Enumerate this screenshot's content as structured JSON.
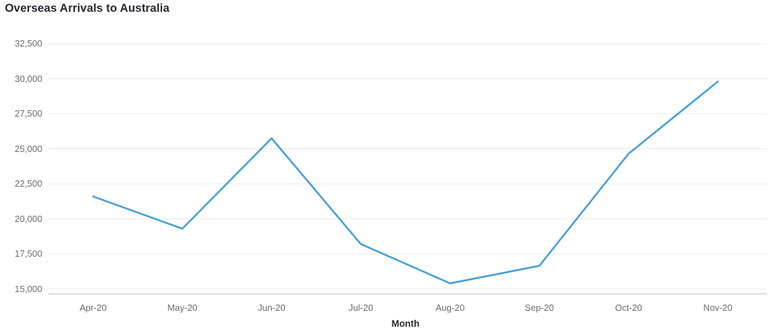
{
  "page": {
    "title": "Overseas Arrivals to Australia"
  },
  "chart_data": {
    "type": "line",
    "title": "Overseas Arrivals to Australia",
    "categories": [
      "Apr-20",
      "May-20",
      "Jun-20",
      "Jul-20",
      "Aug-20",
      "Sep-20",
      "Oct-20",
      "Nov-20"
    ],
    "series": [
      {
        "name": "Overseas Arrivals",
        "values": [
          21600,
          19300,
          25750,
          18200,
          15400,
          16650,
          24650,
          29800
        ]
      }
    ],
    "xlabel": "Month",
    "ylabel": "",
    "ylim": [
      15000,
      32500
    ],
    "ytick_step": 2500,
    "ytick_labels": [
      "15,000",
      "17,500",
      "20,000",
      "22,500",
      "25,000",
      "27,500",
      "30,000",
      "32,500"
    ],
    "grid": true,
    "legend": false,
    "markers": false
  },
  "colors": {
    "line": "#46a0d5",
    "grid": "#e9e9e9",
    "axis_line": "#ccd2d8",
    "tick_text": "#6a6a6a",
    "title_text": "#24292f",
    "axis_title_text": "#2b2b2b",
    "background": "#ffffff"
  }
}
